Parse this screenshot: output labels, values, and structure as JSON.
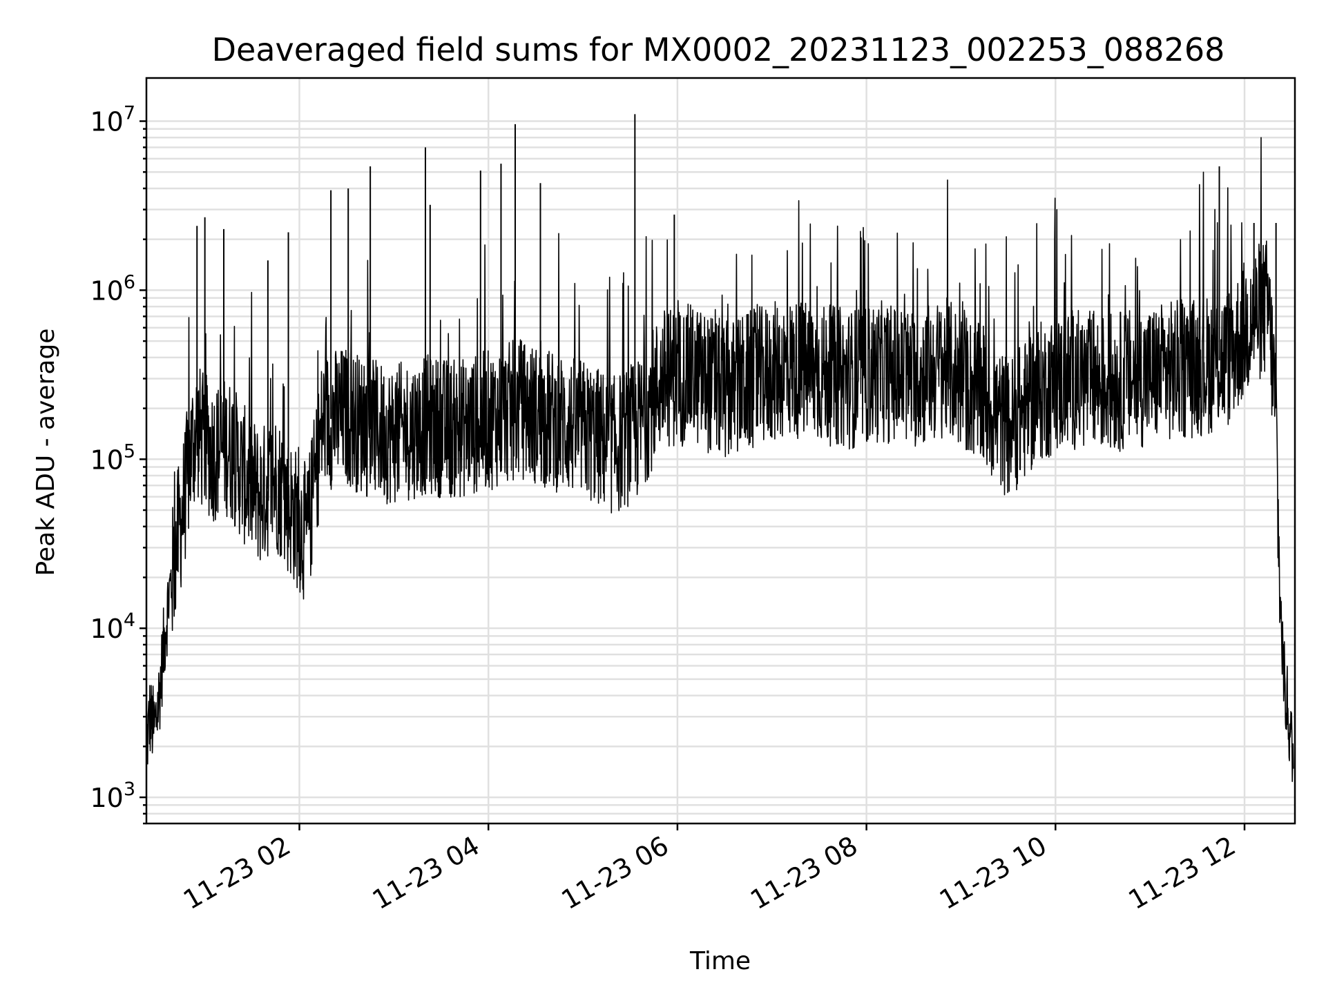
{
  "chart_data": {
    "type": "line",
    "title": "Deaveraged field sums for MX0002_20231123_002253_088268",
    "xlabel": "Time",
    "ylabel": "Peak ADU - average",
    "yscale": "log",
    "ylim": [
      700,
      18000000
    ],
    "xlim": [
      "2023-11-23 00:22:53",
      "2023-11-23 12:32:00"
    ],
    "grid": true,
    "line_color": "#000000",
    "x_ticks": [
      "11-23 02",
      "11-23 04",
      "11-23 06",
      "11-23 08",
      "11-23 10",
      "11-23 12"
    ],
    "y_ticks": [
      {
        "base": "10",
        "exp": "3"
      },
      {
        "base": "10",
        "exp": "4"
      },
      {
        "base": "10",
        "exp": "5"
      },
      {
        "base": "10",
        "exp": "6"
      },
      {
        "base": "10",
        "exp": "7"
      }
    ],
    "series": [
      {
        "values_note_omitted": true,
        "x": [
          "2023-11-23 00:23",
          "2023-11-23 00:25",
          "2023-11-23 00:28",
          "2023-11-23 00:31",
          "2023-11-23 00:34",
          "2023-11-23 00:37",
          "2023-11-23 00:40",
          "2023-11-23 00:43",
          "2023-11-23 00:46",
          "2023-11-23 00:49",
          "2023-11-23 00:52",
          "2023-11-23 00:55",
          "2023-11-23 00:58",
          "2023-11-23 01:05",
          "2023-11-23 01:15",
          "2023-11-23 01:25",
          "2023-11-23 01:35",
          "2023-11-23 01:45",
          "2023-11-23 01:55",
          "2023-11-23 02:05",
          "2023-11-23 02:15",
          "2023-11-23 02:30",
          "2023-11-23 02:45",
          "2023-11-23 03:00",
          "2023-11-23 03:20",
          "2023-11-23 03:40",
          "2023-11-23 04:00",
          "2023-11-23 04:20",
          "2023-11-23 04:40",
          "2023-11-23 05:00",
          "2023-11-23 05:20",
          "2023-11-23 05:35",
          "2023-11-23 05:50",
          "2023-11-23 06:10",
          "2023-11-23 06:30",
          "2023-11-23 06:50",
          "2023-11-23 07:10",
          "2023-11-23 07:30",
          "2023-11-23 07:50",
          "2023-11-23 08:10",
          "2023-11-23 08:30",
          "2023-11-23 08:50",
          "2023-11-23 09:10",
          "2023-11-23 09:30",
          "2023-11-23 09:50",
          "2023-11-23 10:10",
          "2023-11-23 10:30",
          "2023-11-23 10:50",
          "2023-11-23 11:10",
          "2023-11-23 11:30",
          "2023-11-23 11:50",
          "2023-11-23 12:05",
          "2023-11-23 12:15",
          "2023-11-23 12:20",
          "2023-11-23 12:22",
          "2023-11-23 12:25",
          "2023-11-23 12:28",
          "2023-11-23 12:31"
        ],
        "y": [
          2000,
          3000,
          2500,
          4000,
          8000,
          15000,
          22000,
          35000,
          50000,
          80000,
          120000,
          150000,
          130000,
          110000,
          120000,
          80000,
          60000,
          75000,
          50000,
          35000,
          170000,
          180000,
          150000,
          140000,
          160000,
          150000,
          170000,
          200000,
          170000,
          150000,
          120000,
          150000,
          300000,
          320000,
          250000,
          300000,
          350000,
          320000,
          300000,
          330000,
          300000,
          350000,
          250000,
          150000,
          250000,
          300000,
          280000,
          300000,
          330000,
          350000,
          400000,
          700000,
          800000,
          200000,
          20000,
          5000,
          3000,
          1500
        ]
      }
    ],
    "spikes": [
      {
        "x": "2023-11-23 00:55",
        "y": 2400000
      },
      {
        "x": "2023-11-23 01:00",
        "y": 2700000
      },
      {
        "x": "2023-11-23 01:12",
        "y": 2300000
      },
      {
        "x": "2023-11-23 01:40",
        "y": 1500000
      },
      {
        "x": "2023-11-23 01:53",
        "y": 2200000
      },
      {
        "x": "2023-11-23 02:20",
        "y": 3900000
      },
      {
        "x": "2023-11-23 02:31",
        "y": 4000000
      },
      {
        "x": "2023-11-23 02:45",
        "y": 5400000
      },
      {
        "x": "2023-11-23 03:20",
        "y": 7000000
      },
      {
        "x": "2023-11-23 03:23",
        "y": 3200000
      },
      {
        "x": "2023-11-23 03:55",
        "y": 5100000
      },
      {
        "x": "2023-11-23 04:08",
        "y": 5600000
      },
      {
        "x": "2023-11-23 04:17",
        "y": 9600000
      },
      {
        "x": "2023-11-23 04:33",
        "y": 4300000
      },
      {
        "x": "2023-11-23 05:33",
        "y": 11000000
      },
      {
        "x": "2023-11-23 05:58",
        "y": 2800000
      },
      {
        "x": "2023-11-23 07:58",
        "y": 2000000
      },
      {
        "x": "2023-11-23 11:44",
        "y": 5400000
      },
      {
        "x": "2023-11-23 12:06",
        "y": 2500000
      },
      {
        "x": "2023-11-23 12:20",
        "y": 2500000
      }
    ]
  }
}
